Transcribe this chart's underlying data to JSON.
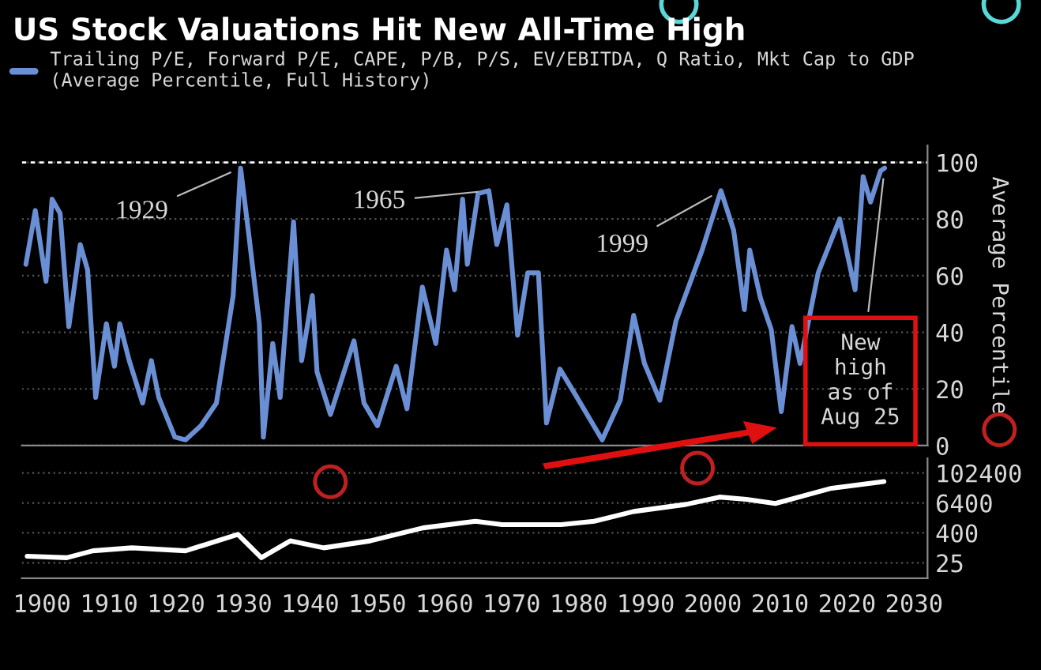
{
  "chart_data": [
    {
      "type": "line",
      "title": "US Stock Valuations Hit New All-Time High",
      "ylabel": "Average Percentile",
      "xlim": [
        1897,
        2032
      ],
      "ylim": [
        0,
        106
      ],
      "yticks": [
        0,
        20,
        40,
        60,
        80,
        100
      ],
      "grid": "y",
      "legend": "top left",
      "tick_labels": "y",
      "series": [
        {
          "name": "Trailing P/E, Forward P/E, CAPE, P/B, P/S, EV/EBITDA, Q Ratio, Mkt Cap to GDP\n(Average Percentile, Full History)",
          "color": "#6a8fd4",
          "x": [
            1897.6,
            1899,
            1900.6,
            1901.5,
            1902.7,
            1904,
            1905.7,
            1906.8,
            1908,
            1909.6,
            1910.8,
            1911.6,
            1913,
            1915,
            1916.3,
            1917.4,
            1919.8,
            1921.4,
            1923.7,
            1926,
            1928.5,
            1929.6,
            1930.8,
            1932.4,
            1933,
            1934.4,
            1935.5,
            1937.5,
            1938.7,
            1940.3,
            1941,
            1943,
            1946.5,
            1948,
            1950,
            1952.8,
            1954.4,
            1956.7,
            1958.7,
            1960.3,
            1961.5,
            1962.7,
            1963.4,
            1965,
            1966.6,
            1967.8,
            1969.3,
            1970.9,
            1972.4,
            1974,
            1975.2,
            1977.2,
            1979.5,
            1983.5,
            1986.2,
            1988.2,
            1989.8,
            1992.1,
            1994.5,
            1998.4,
            2001.2,
            2003.1,
            2004.7,
            2005.5,
            2007.1,
            2008.7,
            2010.2,
            2011.8,
            2013,
            2015.7,
            2018.9,
            2021.2,
            2022.4,
            2023.5,
            2025,
            2025.6
          ],
          "values": [
            64,
            83,
            58,
            87,
            82,
            42,
            71,
            62,
            17,
            43,
            28,
            43,
            30,
            15,
            30,
            17,
            3,
            2,
            7,
            15,
            53,
            98,
            75,
            43,
            3,
            36,
            17,
            79,
            30,
            53,
            26,
            11,
            37,
            15,
            7,
            28,
            13,
            56,
            36,
            69,
            55,
            87,
            64,
            89,
            90,
            71,
            85,
            39,
            61,
            61,
            8,
            27,
            18,
            2,
            16,
            46,
            29,
            16,
            44,
            69,
            90,
            76,
            48,
            69,
            52,
            41,
            12,
            42,
            29,
            61,
            80,
            55,
            95,
            86,
            97,
            98
          ]
        }
      ],
      "ref_lines": [
        {
          "axis": "y",
          "value": 100,
          "color": "#ffffff",
          "line_style": "dashed"
        }
      ],
      "annotations": [
        {
          "text": "1929",
          "x": 1929.6,
          "y": 98
        },
        {
          "text": "1965",
          "x": 1966.6,
          "y": 90
        },
        {
          "text": "1999",
          "x": 2001.2,
          "y": 90
        },
        {
          "text": "New\nhigh\nas of\nAug 25",
          "x": 2025.6,
          "y": 98
        }
      ]
    },
    {
      "type": "line",
      "log": true,
      "xlim": [
        1897,
        2032
      ],
      "ylim": [
        6,
        400000
      ],
      "xticks": [
        1900,
        1910,
        1920,
        1930,
        1940,
        1950,
        1960,
        1970,
        1980,
        1990,
        2000,
        2010,
        2020,
        2030
      ],
      "yticks": [
        25,
        400,
        6400,
        102400
      ],
      "grid": "y",
      "series": [
        {
          "color": "#ffffff",
          "x": [
            1897.8,
            1903.7,
            1907.6,
            1913.4,
            1921.4,
            1929.2,
            1932.7,
            1937,
            1942,
            1948.9,
            1956.8,
            1964.6,
            1968.6,
            1974.5,
            1977.4,
            1982.3,
            1988.2,
            1996,
            2001,
            2005,
            2009.3,
            2017.7,
            2021.6,
            2025.5
          ],
          "values": [
            46,
            40,
            76,
            100,
            76,
            345,
            40,
            190,
            100,
            190,
            635,
            1170,
            855,
            855,
            855,
            1170,
            2900,
            5600,
            11000,
            8900,
            6100,
            25000,
            34000,
            46000
          ]
        }
      ]
    }
  ]
}
